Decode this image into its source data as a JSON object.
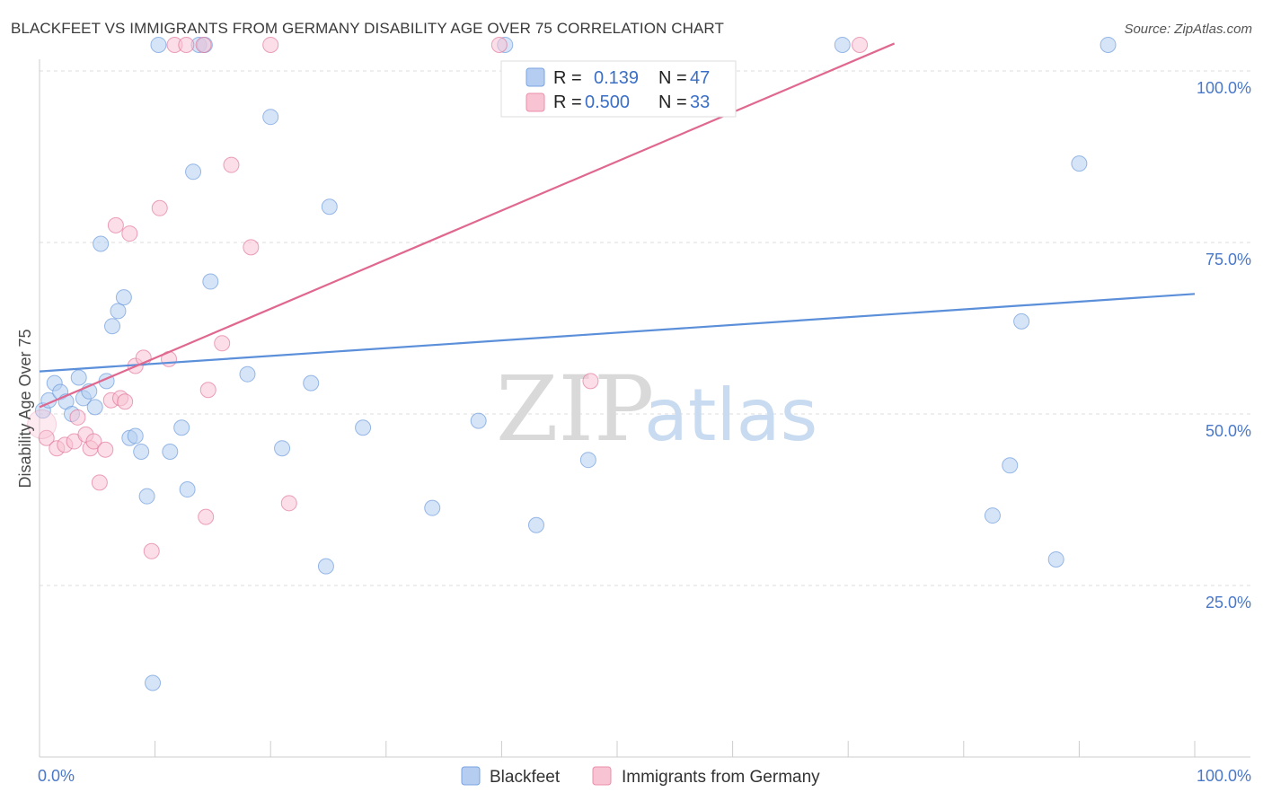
{
  "header": {
    "title": "BLACKFEET VS IMMIGRANTS FROM GERMANY DISABILITY AGE OVER 75 CORRELATION CHART",
    "source": "Source: ZipAtlas.com"
  },
  "watermark": {
    "zip": "ZIP",
    "atlas": "atlas"
  },
  "legend_box": {
    "rows": [
      {
        "r_label": "R =",
        "r_value": "0.139",
        "n_label": "N =",
        "n_value": "47",
        "color": "#a9c6ef"
      },
      {
        "r_label": "R =",
        "r_value": "0.500",
        "n_label": "N =",
        "n_value": "33",
        "color": "#f6b8cb"
      }
    ]
  },
  "bottom_legend": [
    {
      "label": "Blackfeet",
      "color": "#a9c6ef"
    },
    {
      "label": "Immigrants from Germany",
      "color": "#f6b8cb"
    }
  ],
  "chart_data": {
    "type": "scatter",
    "title": "BLACKFEET VS IMMIGRANTS FROM GERMANY DISABILITY AGE OVER 75 CORRELATION CHART",
    "ylabel": "Disability Age Over 75",
    "xlabel": "",
    "xlim": [
      0,
      100
    ],
    "ylim": [
      0,
      105
    ],
    "x_tick_labels": [
      "0.0%",
      "100.0%"
    ],
    "y_tick_labels": [
      "25.0%",
      "50.0%",
      "75.0%",
      "100.0%"
    ],
    "y_tick_values": [
      25,
      50,
      75,
      100
    ],
    "grid": "horizontal dashed",
    "legend_position": "top-center",
    "series": [
      {
        "name": "Blackfeet",
        "color": "#5b8fd9",
        "fill": "#b4cdf0",
        "trend": [
          [
            0,
            56.2
          ],
          [
            100,
            67.5
          ]
        ],
        "points": [
          [
            0.3,
            50.5
          ],
          [
            0.8,
            52.0
          ],
          [
            1.3,
            54.5
          ],
          [
            1.8,
            53.2
          ],
          [
            2.3,
            51.8
          ],
          [
            2.8,
            50.0
          ],
          [
            3.4,
            55.3
          ],
          [
            3.8,
            52.3
          ],
          [
            4.3,
            53.3
          ],
          [
            4.8,
            51.0
          ],
          [
            5.3,
            74.8
          ],
          [
            5.8,
            54.8
          ],
          [
            6.3,
            62.8
          ],
          [
            6.8,
            65.0
          ],
          [
            7.3,
            67.0
          ],
          [
            7.8,
            46.5
          ],
          [
            8.3,
            46.8
          ],
          [
            8.8,
            44.5
          ],
          [
            9.3,
            38.0
          ],
          [
            9.8,
            10.8
          ],
          [
            10.3,
            103.8
          ],
          [
            11.3,
            44.5
          ],
          [
            12.3,
            48.0
          ],
          [
            12.8,
            39.0
          ],
          [
            13.3,
            85.3
          ],
          [
            13.8,
            103.8
          ],
          [
            14.3,
            103.8
          ],
          [
            14.8,
            69.3
          ],
          [
            18.0,
            55.8
          ],
          [
            20.0,
            93.3
          ],
          [
            21.0,
            45.0
          ],
          [
            23.5,
            54.5
          ],
          [
            24.8,
            27.8
          ],
          [
            25.1,
            80.2
          ],
          [
            28.0,
            48.0
          ],
          [
            34.0,
            36.3
          ],
          [
            38.0,
            49.0
          ],
          [
            40.3,
            103.8
          ],
          [
            43.0,
            33.8
          ],
          [
            47.5,
            43.3
          ],
          [
            69.5,
            103.8
          ],
          [
            82.5,
            35.2
          ],
          [
            84.0,
            42.5
          ],
          [
            85.0,
            63.5
          ],
          [
            88.0,
            28.8
          ],
          [
            90.0,
            86.5
          ],
          [
            92.5,
            103.8
          ]
        ]
      },
      {
        "name": "Immigrants from Germany",
        "color": "#e0688f",
        "fill": "#f8c3d3",
        "trend": [
          [
            0,
            51.0
          ],
          [
            74.0,
            104.0
          ]
        ],
        "points": [
          [
            0.6,
            46.5
          ],
          [
            1.5,
            45.0
          ],
          [
            2.2,
            45.5
          ],
          [
            3.0,
            46.0
          ],
          [
            3.3,
            49.5
          ],
          [
            4.0,
            47.0
          ],
          [
            4.4,
            45.0
          ],
          [
            4.7,
            46.0
          ],
          [
            5.2,
            40.0
          ],
          [
            5.7,
            44.8
          ],
          [
            6.2,
            52.0
          ],
          [
            6.6,
            77.5
          ],
          [
            7.0,
            52.3
          ],
          [
            7.4,
            51.8
          ],
          [
            7.8,
            76.3
          ],
          [
            8.3,
            57.0
          ],
          [
            9.0,
            58.2
          ],
          [
            9.7,
            30.0
          ],
          [
            10.4,
            80.0
          ],
          [
            11.2,
            58.0
          ],
          [
            11.7,
            103.8
          ],
          [
            12.7,
            103.8
          ],
          [
            14.2,
            103.8
          ],
          [
            14.4,
            35.0
          ],
          [
            14.6,
            53.5
          ],
          [
            15.8,
            60.3
          ],
          [
            16.6,
            86.3
          ],
          [
            18.3,
            74.3
          ],
          [
            20.0,
            103.8
          ],
          [
            21.6,
            37.0
          ],
          [
            39.8,
            103.8
          ],
          [
            47.7,
            54.8
          ],
          [
            71.0,
            103.8
          ]
        ]
      }
    ]
  }
}
